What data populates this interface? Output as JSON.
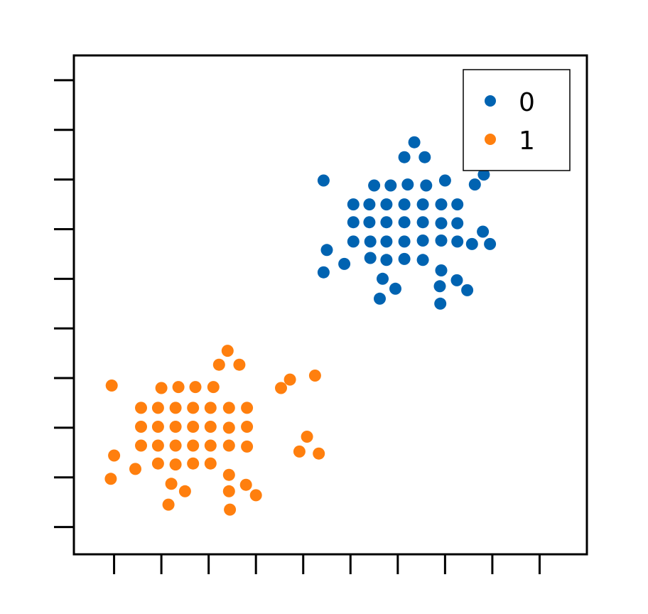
{
  "chart_data": {
    "type": "scatter",
    "title": "",
    "xlabel": "",
    "ylabel": "",
    "xlim": [
      -0.85,
      10.0
    ],
    "ylim": [
      -0.55,
      9.5
    ],
    "xticks": [
      0,
      1,
      2,
      3,
      4,
      5,
      6,
      7,
      8,
      9
    ],
    "yticks": [
      0,
      1,
      2,
      3,
      4,
      5,
      6,
      7,
      8,
      9
    ],
    "tick_labels_visible": false,
    "grid": false,
    "legend_position": "top-right",
    "series": [
      {
        "name": "0",
        "color": "#0063b1",
        "points": [
          [
            6.35,
            7.75
          ],
          [
            6.14,
            7.45
          ],
          [
            6.57,
            7.45
          ],
          [
            4.43,
            6.98
          ],
          [
            7.0,
            6.98
          ],
          [
            7.82,
            7.1
          ],
          [
            5.5,
            6.88
          ],
          [
            5.85,
            6.88
          ],
          [
            6.21,
            6.9
          ],
          [
            6.6,
            6.88
          ],
          [
            7.63,
            6.9
          ],
          [
            5.06,
            6.5
          ],
          [
            5.4,
            6.5
          ],
          [
            5.76,
            6.5
          ],
          [
            6.14,
            6.5
          ],
          [
            6.53,
            6.5
          ],
          [
            6.92,
            6.5
          ],
          [
            7.26,
            6.5
          ],
          [
            5.06,
            6.14
          ],
          [
            5.4,
            6.14
          ],
          [
            5.76,
            6.14
          ],
          [
            6.14,
            6.14
          ],
          [
            6.53,
            6.14
          ],
          [
            6.92,
            6.12
          ],
          [
            7.26,
            6.12
          ],
          [
            7.8,
            5.95
          ],
          [
            5.06,
            5.75
          ],
          [
            5.42,
            5.75
          ],
          [
            5.76,
            5.75
          ],
          [
            6.14,
            5.75
          ],
          [
            6.53,
            5.77
          ],
          [
            6.92,
            5.77
          ],
          [
            7.26,
            5.75
          ],
          [
            7.57,
            5.7
          ],
          [
            7.95,
            5.7
          ],
          [
            4.5,
            5.58
          ],
          [
            4.87,
            5.3
          ],
          [
            5.42,
            5.42
          ],
          [
            5.76,
            5.38
          ],
          [
            6.14,
            5.4
          ],
          [
            6.53,
            5.38
          ],
          [
            4.43,
            5.13
          ],
          [
            5.68,
            5.0
          ],
          [
            5.95,
            4.8
          ],
          [
            6.92,
            5.17
          ],
          [
            7.25,
            4.97
          ],
          [
            5.62,
            4.6
          ],
          [
            6.89,
            4.85
          ],
          [
            7.47,
            4.77
          ],
          [
            6.9,
            4.5
          ]
        ]
      },
      {
        "name": "1",
        "color": "#ff7f0e",
        "points": [
          [
            2.4,
            3.55
          ],
          [
            2.22,
            3.27
          ],
          [
            2.65,
            3.27
          ],
          [
            4.25,
            3.05
          ],
          [
            3.72,
            2.97
          ],
          [
            -0.05,
            2.85
          ],
          [
            3.53,
            2.8
          ],
          [
            1.0,
            2.8
          ],
          [
            1.36,
            2.82
          ],
          [
            1.72,
            2.82
          ],
          [
            2.1,
            2.82
          ],
          [
            0.57,
            2.4
          ],
          [
            0.93,
            2.4
          ],
          [
            1.3,
            2.4
          ],
          [
            1.67,
            2.4
          ],
          [
            2.04,
            2.4
          ],
          [
            2.43,
            2.4
          ],
          [
            2.81,
            2.4
          ],
          [
            0.57,
            2.02
          ],
          [
            0.93,
            2.02
          ],
          [
            1.3,
            2.02
          ],
          [
            1.67,
            2.02
          ],
          [
            2.04,
            2.02
          ],
          [
            2.43,
            2.0
          ],
          [
            2.81,
            2.02
          ],
          [
            0.57,
            1.64
          ],
          [
            0.93,
            1.64
          ],
          [
            1.3,
            1.64
          ],
          [
            1.67,
            1.64
          ],
          [
            2.04,
            1.64
          ],
          [
            2.43,
            1.64
          ],
          [
            2.81,
            1.62
          ],
          [
            4.08,
            1.82
          ],
          [
            3.92,
            1.52
          ],
          [
            4.33,
            1.48
          ],
          [
            0.0,
            1.44
          ],
          [
            0.45,
            1.17
          ],
          [
            0.93,
            1.28
          ],
          [
            1.3,
            1.26
          ],
          [
            1.67,
            1.28
          ],
          [
            2.04,
            1.28
          ],
          [
            -0.07,
            0.97
          ],
          [
            1.21,
            0.87
          ],
          [
            1.5,
            0.72
          ],
          [
            2.43,
            1.05
          ],
          [
            2.79,
            0.85
          ],
          [
            3.0,
            0.64
          ],
          [
            2.43,
            0.72
          ],
          [
            1.15,
            0.45
          ],
          [
            2.45,
            0.35
          ]
        ]
      }
    ]
  }
}
